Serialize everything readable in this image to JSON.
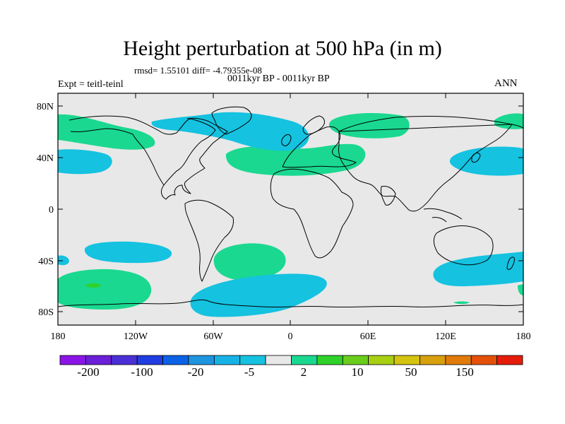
{
  "title": "Height perturbation at 500 hPa (in m)",
  "stats": "rmsd= 1.55101 diff= -4.79355e-08",
  "period": "0011kyr BP - 0011kyr BP",
  "experiment": "Expt = teitl-teinl",
  "season": "ANN",
  "map": {
    "background_color": "#e8e8e8",
    "lat_ticks": [
      "80N",
      "40N",
      "0",
      "40S",
      "80S"
    ],
    "lon_ticks": [
      "180",
      "120W",
      "60W",
      "0",
      "60E",
      "120E",
      "180"
    ]
  },
  "colorbar": {
    "colors": [
      "#8a14e6",
      "#6a1fd8",
      "#4b2fd6",
      "#1f3de0",
      "#0b62e6",
      "#1f95e0",
      "#17b3e6",
      "#15c2e0",
      "#e8e8e8",
      "#1ad890",
      "#2ed22a",
      "#6acd1c",
      "#a8cf12",
      "#d4c40f",
      "#d8a00c",
      "#e07a0a",
      "#e4500a",
      "#e61c0a"
    ],
    "labels": [
      "-200",
      "-100",
      "-20",
      "-5",
      "2",
      "10",
      "50",
      "150"
    ]
  }
}
